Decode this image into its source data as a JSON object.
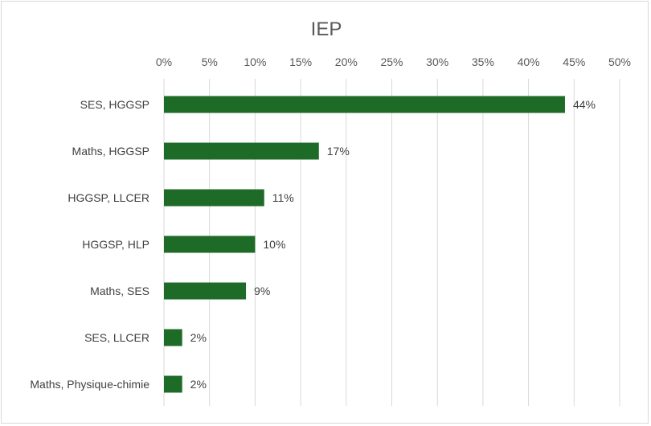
{
  "chart_data": {
    "type": "bar",
    "orientation": "horizontal",
    "title": "IEP",
    "categories": [
      "SES, HGGSP",
      "Maths, HGGSP",
      "HGGSP, LLCER",
      "HGGSP, HLP",
      "Maths, SES",
      "SES, LLCER",
      "Maths, Physique-chimie"
    ],
    "values": [
      44,
      17,
      11,
      10,
      9,
      2,
      2
    ],
    "data_labels": [
      "44%",
      "17%",
      "11%",
      "10%",
      "9%",
      "2%",
      "2%"
    ],
    "xlim": [
      0,
      50
    ],
    "x_ticks": [
      0,
      5,
      10,
      15,
      20,
      25,
      30,
      35,
      40,
      45,
      50
    ],
    "x_tick_labels": [
      "0%",
      "5%",
      "10%",
      "15%",
      "20%",
      "25%",
      "30%",
      "35%",
      "40%",
      "45%",
      "50%"
    ],
    "axis_position": "top",
    "grid": true,
    "legend": "none",
    "bar_color": "#1e6b27",
    "grid_color": "#d9d9d9"
  }
}
